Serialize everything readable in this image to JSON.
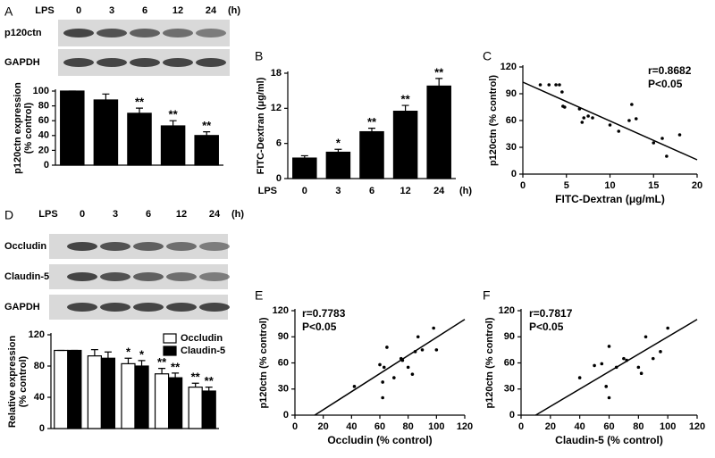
{
  "chart_data": [
    {
      "type": "bar",
      "label": "A",
      "blot": {
        "label": "LPS",
        "lanes": [
          "0",
          "3",
          "6",
          "12",
          "24"
        ],
        "unit": "(h)",
        "rows": [
          "p120ctn",
          "GAPDH"
        ]
      },
      "ylabel": [
        "p120ctn expression",
        "(% control)"
      ],
      "ylim": [
        0,
        100
      ],
      "yticks": [
        0,
        20,
        40,
        60,
        80,
        100
      ],
      "series": [
        {
          "color": "#000000",
          "values": [
            100,
            88,
            70,
            53,
            40
          ],
          "errors": [
            0,
            8,
            7,
            7,
            5
          ],
          "significance": [
            null,
            null,
            "**",
            "**",
            "**"
          ]
        }
      ]
    },
    {
      "type": "bar",
      "label": "B",
      "ylabel": [
        "FITC-Dextran (μg/ml)"
      ],
      "xlabel": "LPS",
      "xunit": "(h)",
      "categories": [
        "0",
        "3",
        "6",
        "12",
        "24"
      ],
      "ylim": [
        0,
        18
      ],
      "yticks": [
        0,
        6,
        12,
        18
      ],
      "series": [
        {
          "color": "#000000",
          "values": [
            3.5,
            4.5,
            8,
            11.5,
            15.8
          ],
          "errors": [
            0.4,
            0.5,
            0.6,
            1,
            1.3
          ],
          "significance": [
            null,
            "*",
            "**",
            "**",
            "**"
          ]
        }
      ]
    },
    {
      "type": "scatter",
      "label": "C",
      "xlabel": "FITC-Dextran (μg/mL)",
      "ylabel": [
        "p120ctn (% control)"
      ],
      "annotations": [
        "r=0.8682",
        "P<0.05"
      ],
      "xlim": [
        0,
        20
      ],
      "xticks": [
        0,
        5,
        10,
        15,
        20
      ],
      "ylim": [
        0,
        120
      ],
      "yticks": [
        0,
        30,
        60,
        90,
        120
      ],
      "color": "#000000",
      "x": [
        2,
        3,
        3.8,
        4.2,
        4.5,
        4.6,
        4.8,
        6.5,
        6.8,
        7,
        7.5,
        8,
        10,
        11,
        12.5,
        12.2,
        13,
        15,
        16,
        16.5,
        18
      ],
      "y": [
        100,
        100,
        100,
        100,
        92,
        76,
        75,
        73,
        58,
        63,
        65,
        63,
        55,
        48,
        78,
        60,
        62,
        35,
        40,
        20,
        44
      ],
      "fit": {
        "x": [
          0,
          20
        ],
        "y": [
          103,
          16
        ]
      }
    },
    {
      "type": "bar",
      "label": "D",
      "blot": {
        "label": "LPS",
        "lanes": [
          "0",
          "3",
          "6",
          "12",
          "24"
        ],
        "unit": "(h)",
        "rows": [
          "Occludin",
          "Claudin-5",
          "GAPDH"
        ]
      },
      "ylabel": [
        "Relative expression",
        "(% control)"
      ],
      "ylim": [
        0,
        120
      ],
      "yticks": [
        0,
        40,
        80,
        120
      ],
      "legend": "upper right",
      "series": [
        {
          "name": "Occludin",
          "color": "#ffffff",
          "values": [
            100,
            93,
            83,
            70,
            53
          ],
          "errors": [
            0,
            8,
            7,
            7,
            5
          ],
          "significance": [
            null,
            null,
            "*",
            "**",
            "**"
          ]
        },
        {
          "name": "Claudin-5",
          "color": "#000000",
          "values": [
            100,
            90,
            80,
            65,
            48
          ],
          "errors": [
            0,
            8,
            7,
            6,
            5
          ],
          "significance": [
            null,
            null,
            "*",
            "**",
            "**"
          ]
        }
      ]
    },
    {
      "type": "scatter",
      "label": "E",
      "xlabel": "Occludin (% control)",
      "ylabel": [
        "p120ctn (% control)"
      ],
      "annotations": [
        "r=0.7783",
        "P<0.05"
      ],
      "xlim": [
        0,
        120
      ],
      "xticks": [
        0,
        20,
        40,
        60,
        80,
        100,
        120
      ],
      "ylim": [
        0,
        120
      ],
      "yticks": [
        0,
        30,
        60,
        90,
        120
      ],
      "color": "#000000",
      "x": [
        42,
        60,
        62,
        62,
        63,
        65,
        70,
        75,
        76,
        80,
        83,
        85,
        87,
        90,
        98,
        100
      ],
      "y": [
        33,
        58,
        20,
        38,
        55,
        78,
        43,
        65,
        63,
        55,
        47,
        73,
        90,
        75,
        100,
        75
      ],
      "fit": {
        "x": [
          14,
          120
        ],
        "y": [
          0,
          110
        ]
      }
    },
    {
      "type": "scatter",
      "label": "F",
      "xlabel": "Claudin-5 (% control)",
      "ylabel": [
        "p120ctn (% control)"
      ],
      "annotations": [
        "r=0.7817",
        "P<0.05"
      ],
      "xlim": [
        0,
        120
      ],
      "xticks": [
        0,
        20,
        40,
        60,
        80,
        100,
        120
      ],
      "ylim": [
        0,
        120
      ],
      "yticks": [
        0,
        30,
        60,
        90,
        120
      ],
      "color": "#000000",
      "x": [
        40,
        50,
        55,
        58,
        60,
        60,
        65,
        70,
        72,
        80,
        82,
        85,
        90,
        95,
        100
      ],
      "y": [
        43,
        57,
        59,
        33,
        79,
        20,
        55,
        65,
        63,
        55,
        48,
        90,
        65,
        73,
        100
      ],
      "fit": {
        "x": [
          10,
          120
        ],
        "y": [
          0,
          110
        ]
      }
    }
  ]
}
